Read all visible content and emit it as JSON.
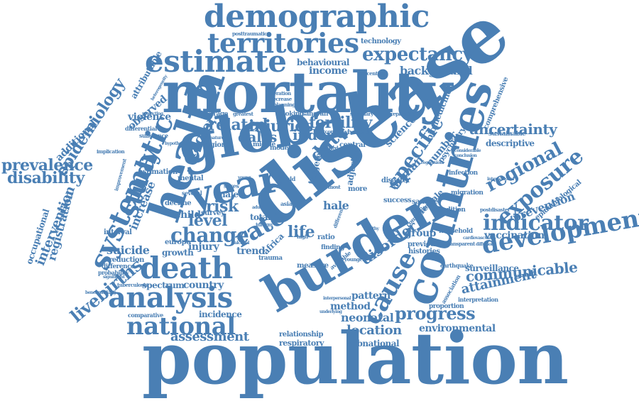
{
  "cloud": {
    "color": "#4a7fb4",
    "words": [
      {
        "text": "population"
      },
      {
        "text": "disease"
      },
      {
        "text": "mortality"
      },
      {
        "text": "global"
      },
      {
        "text": "burden"
      },
      {
        "text": "health"
      },
      {
        "text": "countries"
      },
      {
        "text": "year"
      },
      {
        "text": "demographic"
      },
      {
        "text": "territories"
      },
      {
        "text": "estimate"
      },
      {
        "text": "systematic"
      },
      {
        "text": "death"
      },
      {
        "text": "analysis"
      },
      {
        "text": "development"
      },
      {
        "text": "national"
      },
      {
        "text": "cause"
      },
      {
        "text": "study"
      },
      {
        "text": "rate"
      },
      {
        "text": "exposure"
      },
      {
        "text": "indicator"
      },
      {
        "text": "regional"
      },
      {
        "text": "expectancy"
      },
      {
        "text": "epidemiology"
      },
      {
        "text": "prevalence"
      },
      {
        "text": "disability"
      },
      {
        "text": "specific"
      },
      {
        "text": "change"
      },
      {
        "text": "injuries"
      },
      {
        "text": "fertility"
      },
      {
        "text": "uncertainty"
      },
      {
        "text": "livebirths"
      },
      {
        "text": "communicable"
      },
      {
        "text": "progress"
      },
      {
        "text": "assessment"
      },
      {
        "text": "disorder"
      },
      {
        "text": "level"
      },
      {
        "text": "risk"
      },
      {
        "text": "date"
      },
      {
        "text": "related"
      },
      {
        "text": "dalys"
      },
      {
        "text": "index"
      },
      {
        "text": "life"
      },
      {
        "text": "attainment"
      },
      {
        "text": "vaccination"
      },
      {
        "text": "prevention"
      },
      {
        "text": "registration"
      },
      {
        "text": "intervention"
      },
      {
        "text": "suicide"
      },
      {
        "text": "location"
      },
      {
        "text": "neonatal"
      },
      {
        "text": "background"
      },
      {
        "text": "income"
      },
      {
        "text": "behavioural"
      },
      {
        "text": "surveillance"
      },
      {
        "text": "environmental"
      },
      {
        "text": "country"
      },
      {
        "text": "factor"
      },
      {
        "text": "increase"
      },
      {
        "text": "woman"
      },
      {
        "text": "science"
      },
      {
        "text": "additional"
      },
      {
        "text": "observed"
      },
      {
        "text": "violence"
      },
      {
        "text": "trend"
      },
      {
        "text": "pattern"
      },
      {
        "text": "group"
      },
      {
        "text": "growth"
      },
      {
        "text": "injury"
      },
      {
        "text": "spectrum"
      },
      {
        "text": "incidence"
      },
      {
        "text": "method"
      },
      {
        "text": "subnational"
      },
      {
        "text": "respiratory"
      },
      {
        "text": "relationship"
      },
      {
        "text": "occupational"
      },
      {
        "text": "attributable"
      },
      {
        "text": "descriptive"
      },
      {
        "text": "number"
      },
      {
        "text": "biomedicine"
      },
      {
        "text": "psychiatry"
      },
      {
        "text": "epidemiological"
      },
      {
        "text": "comprehensive"
      },
      {
        "text": "sustainable"
      },
      {
        "text": "infection"
      },
      {
        "text": "migration"
      },
      {
        "text": "condition"
      },
      {
        "text": "household"
      },
      {
        "text": "previous"
      },
      {
        "text": "histories"
      },
      {
        "text": "sample"
      },
      {
        "text": "success"
      },
      {
        "text": "disaster"
      },
      {
        "text": "proportion"
      },
      {
        "text": "interpretation"
      },
      {
        "text": "association"
      },
      {
        "text": "earthquake"
      },
      {
        "text": "measure"
      },
      {
        "text": "finding"
      },
      {
        "text": "available"
      },
      {
        "text": "younger"
      },
      {
        "text": "trauma"
      },
      {
        "text": "africa"
      },
      {
        "text": "total"
      },
      {
        "text": "male"
      },
      {
        "text": "survey"
      },
      {
        "text": "decline"
      },
      {
        "text": "child"
      },
      {
        "text": "europe"
      },
      {
        "text": "interval"
      },
      {
        "text": "reduction"
      },
      {
        "text": "difference"
      },
      {
        "text": "probability"
      },
      {
        "text": "tuberculosis"
      },
      {
        "text": "comparative"
      },
      {
        "text": "mental"
      },
      {
        "text": "several"
      },
      {
        "text": "estimation"
      },
      {
        "text": "differential"
      },
      {
        "text": "substance"
      },
      {
        "text": "region"
      },
      {
        "text": "average"
      },
      {
        "text": "greatest"
      },
      {
        "text": "smoking"
      },
      {
        "text": "saharan"
      },
      {
        "text": "middle"
      },
      {
        "text": "model"
      },
      {
        "text": "central"
      },
      {
        "text": "whereas"
      },
      {
        "text": "varied"
      },
      {
        "text": "outcome"
      },
      {
        "text": "adjusted"
      },
      {
        "text": "targeted"
      },
      {
        "text": "sexes"
      },
      {
        "text": "asia"
      },
      {
        "text": "birth"
      },
      {
        "text": "ratio"
      },
      {
        "text": "high"
      },
      {
        "text": "more"
      },
      {
        "text": "female"
      },
      {
        "text": "composite"
      },
      {
        "text": "technology"
      },
      {
        "text": "posttraumatic"
      },
      {
        "text": "percentile"
      },
      {
        "text": "iteration"
      },
      {
        "text": "decrease"
      },
      {
        "text": "planning"
      },
      {
        "text": "summary"
      },
      {
        "text": "replicable"
      },
      {
        "text": "heterogeneity"
      },
      {
        "text": "projecting"
      },
      {
        "text": "implication"
      },
      {
        "text": "improvement"
      },
      {
        "text": "premature"
      },
      {
        "text": "inform"
      },
      {
        "text": "transparent"
      },
      {
        "text": "cardiovascular"
      },
      {
        "text": "postdisaster"
      },
      {
        "text": "international"
      },
      {
        "text": "benchmarking"
      },
      {
        "text": "significant"
      },
      {
        "text": "hale"
      },
      {
        "text": "yld"
      },
      {
        "text": "most"
      },
      {
        "text": "adult"
      },
      {
        "text": "young"
      },
      {
        "text": "healthy"
      },
      {
        "text": "regression"
      },
      {
        "text": "considerable"
      },
      {
        "text": "conclusion"
      },
      {
        "text": "underlying"
      },
      {
        "text": "interpersonal"
      },
      {
        "text": "different"
      },
      {
        "text": "alcohol"
      },
      {
        "text": "hypothesis"
      },
      {
        "text": "diffusion"
      }
    ]
  }
}
